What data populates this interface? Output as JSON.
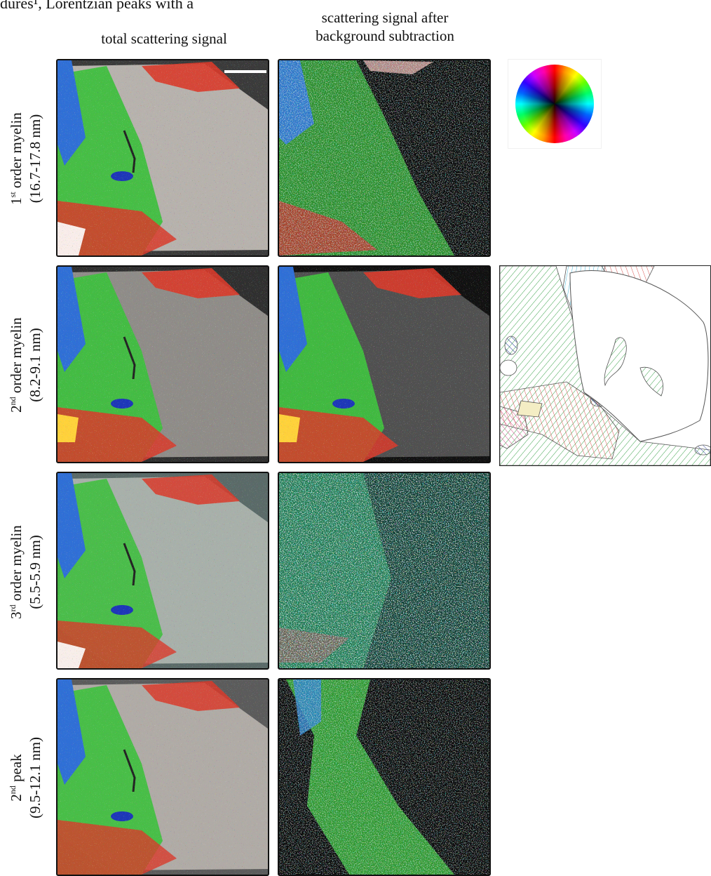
{
  "top_text": "dures¹, Lorentzian peaks with a",
  "columns": {
    "col1": {
      "lines": [
        "total scattering signal"
      ]
    },
    "col2": {
      "lines": [
        "scattering signal after",
        "background subtraction"
      ]
    }
  },
  "rows": [
    {
      "ord": "1",
      "sup": "st",
      "rest": " order myelin",
      "range": "(16.7-17.8 nm)"
    },
    {
      "ord": "2",
      "sup": "nd",
      "rest": " order myelin",
      "range": "(8.2-9.1 nm)"
    },
    {
      "ord": "3",
      "sup": "rd",
      "rest": " order myelin",
      "range": "(5.5-5.9 nm)"
    },
    {
      "ord": "2",
      "sup": "nd",
      "rest": " peak",
      "range": "(9.5-12.1 nm)"
    }
  ],
  "colors": {
    "tissue_green": "#3fbf3f",
    "tissue_blue": "#2f6fd6",
    "tissue_red": "#d93a2a",
    "tissue_gray": "#b9b4b0",
    "hatch_green": "#3aa24a",
    "hatch_red": "#d9534f",
    "hatch_blue": "#2b3f9a",
    "hatch_cyan": "#46b6d8",
    "hatch_magenta": "#d64f8e"
  }
}
